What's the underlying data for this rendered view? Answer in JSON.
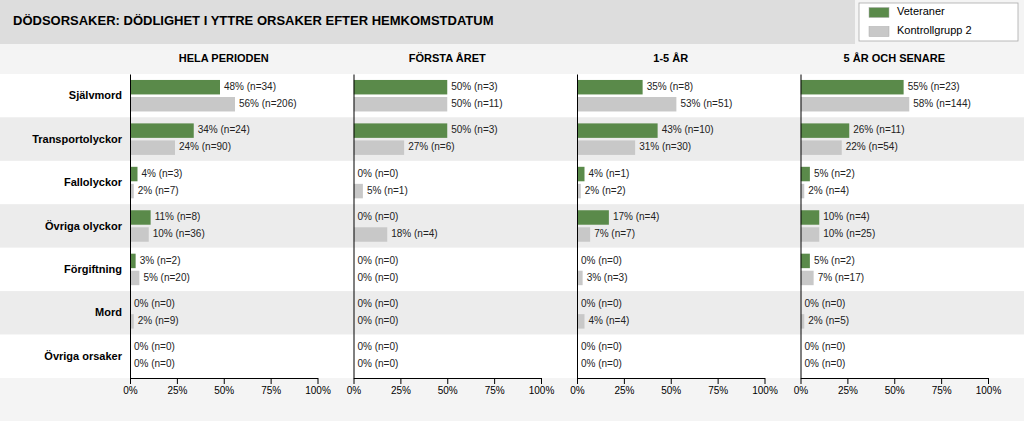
{
  "chart_data": [
    {
      "type": "bar",
      "orientation": "horizontal",
      "title": "DÖDSORSAKER: DÖDLIGHET I YTTRE ORSAKER EFTER HEMKOMSTDATUM",
      "subtitle": "HELA PERIODEN",
      "categories": [
        "Självmord",
        "Transportolyckor",
        "Fallolyckor",
        "Övriga olyckor",
        "Förgiftning",
        "Mord",
        "Övriga orsaker"
      ],
      "series": [
        {
          "name": "Veteraner",
          "color": "#5a8a4a",
          "values": [
            48,
            34,
            4,
            11,
            3,
            0,
            0
          ],
          "value_labels": [
            "48% (n=34)",
            "34% (n=24)",
            "4% (n=3)",
            "11% (n=8)",
            "3% (n=2)",
            "0% (n=0)",
            "0% (n=0)"
          ]
        },
        {
          "name": "Kontrollgrupp 2",
          "color": "#c8c8c8",
          "values": [
            56,
            24,
            2,
            10,
            5,
            2,
            0
          ],
          "value_labels": [
            "56% (n=206)",
            "24% (n=90)",
            "2% (n=7)",
            "10% (n=36)",
            "5% (n=20)",
            "2% (n=9)",
            "0% (n=0)"
          ]
        }
      ],
      "xlim": [
        0,
        100
      ],
      "xticks": [
        {
          "value": 0,
          "label": "0%"
        },
        {
          "value": 25,
          "label": "25%"
        },
        {
          "value": 50,
          "label": "50%"
        },
        {
          "value": 75,
          "label": "75%"
        },
        {
          "value": 100,
          "label": "100%"
        }
      ],
      "grid": false,
      "data_labels": true,
      "legend": "upper right"
    },
    {
      "type": "bar",
      "orientation": "horizontal",
      "subtitle": "FÖRSTA ÅRET",
      "categories": [
        "Självmord",
        "Transportolyckor",
        "Fallolyckor",
        "Övriga olyckor",
        "Förgiftning",
        "Mord",
        "Övriga orsaker"
      ],
      "series": [
        {
          "name": "Veteraner",
          "color": "#5a8a4a",
          "values": [
            50,
            50,
            0,
            0,
            0,
            0,
            0
          ],
          "value_labels": [
            "50% (n=3)",
            "50% (n=3)",
            "0% (n=0)",
            "0% (n=0)",
            "0% (n=0)",
            "0% (n=0)",
            "0% (n=0)"
          ]
        },
        {
          "name": "Kontrollgrupp 2",
          "color": "#c8c8c8",
          "values": [
            50,
            27,
            5,
            18,
            0,
            0,
            0
          ],
          "value_labels": [
            "50% (n=11)",
            "27% (n=6)",
            "5% (n=1)",
            "18% (n=4)",
            "0% (n=0)",
            "0% (n=0)",
            "0% (n=0)"
          ]
        }
      ],
      "xlim": [
        0,
        100
      ],
      "xticks": [
        {
          "value": 0,
          "label": "0%"
        },
        {
          "value": 25,
          "label": "25%"
        },
        {
          "value": 50,
          "label": "50%"
        },
        {
          "value": 75,
          "label": "75%"
        },
        {
          "value": 100,
          "label": "100%"
        }
      ],
      "grid": false,
      "data_labels": true,
      "tick_labels": "x"
    },
    {
      "type": "bar",
      "orientation": "horizontal",
      "subtitle": "1-5 ÅR",
      "categories": [
        "Självmord",
        "Transportolyckor",
        "Fallolyckor",
        "Övriga olyckor",
        "Förgiftning",
        "Mord",
        "Övriga orsaker"
      ],
      "series": [
        {
          "name": "Veteraner",
          "color": "#5a8a4a",
          "values": [
            35,
            43,
            4,
            17,
            0,
            0,
            0
          ],
          "value_labels": [
            "35% (n=8)",
            "43% (n=10)",
            "4% (n=1)",
            "17% (n=4)",
            "0% (n=0)",
            "0% (n=0)",
            "0% (n=0)"
          ]
        },
        {
          "name": "Kontrollgrupp 2",
          "color": "#c8c8c8",
          "values": [
            53,
            31,
            2,
            7,
            3,
            4,
            0
          ],
          "value_labels": [
            "53% (n=51)",
            "31% (n=30)",
            "2% (n=2)",
            "7% (n=7)",
            "3% (n=3)",
            "4% (n=4)",
            "0% (n=0)"
          ]
        }
      ],
      "xlim": [
        0,
        100
      ],
      "xticks": [
        {
          "value": 0,
          "label": "0%"
        },
        {
          "value": 25,
          "label": "25%"
        },
        {
          "value": 50,
          "label": "50%"
        },
        {
          "value": 75,
          "label": "75%"
        },
        {
          "value": 100,
          "label": "100%"
        }
      ],
      "grid": false,
      "data_labels": true,
      "tick_labels": "x"
    },
    {
      "type": "bar",
      "orientation": "horizontal",
      "subtitle": "5 ÅR OCH SENARE",
      "categories": [
        "Självmord",
        "Transportolyckor",
        "Fallolyckor",
        "Övriga olyckor",
        "Förgiftning",
        "Mord",
        "Övriga orsaker"
      ],
      "series": [
        {
          "name": "Veteraner",
          "color": "#5a8a4a",
          "values": [
            55,
            26,
            5,
            10,
            5,
            0,
            0
          ],
          "value_labels": [
            "55% (n=23)",
            "26% (n=11)",
            "5% (n=2)",
            "10% (n=4)",
            "5% (n=2)",
            "0% (n=0)",
            "0% (n=0)"
          ]
        },
        {
          "name": "Kontrollgrupp 2",
          "color": "#c8c8c8",
          "values": [
            58,
            22,
            2,
            10,
            7,
            2,
            0
          ],
          "value_labels": [
            "58% (n=144)",
            "22% (n=54)",
            "2% (n=4)",
            "10% (n=25)",
            "7% (n=17)",
            "2% (n=5)",
            "0% (n=0)"
          ]
        }
      ],
      "xlim": [
        0,
        100
      ],
      "xticks": [
        {
          "value": 0,
          "label": "0%"
        },
        {
          "value": 25,
          "label": "25%"
        },
        {
          "value": 50,
          "label": "50%"
        },
        {
          "value": 75,
          "label": "75%"
        },
        {
          "value": 100,
          "label": "100%"
        }
      ],
      "grid": false,
      "data_labels": true,
      "tick_labels": "x"
    }
  ]
}
